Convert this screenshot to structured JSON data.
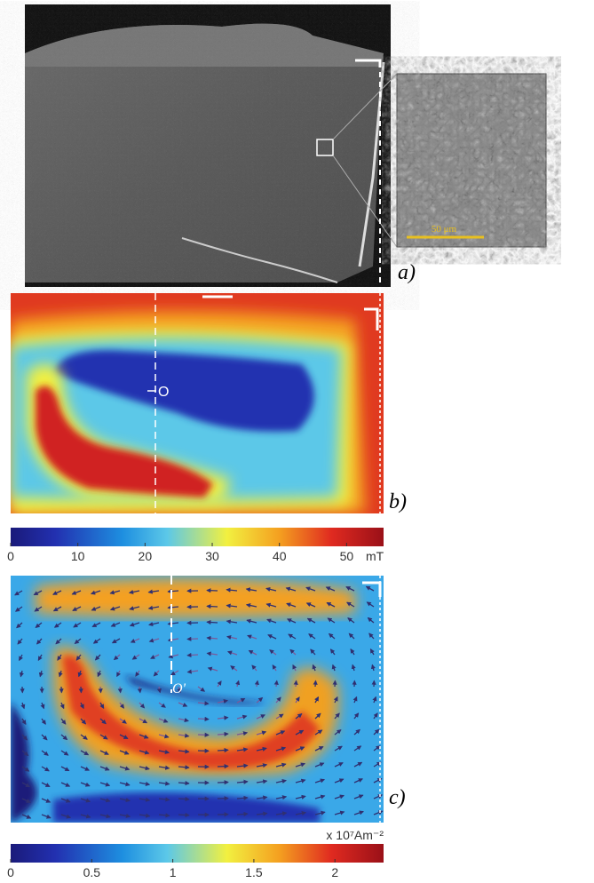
{
  "panels": {
    "a": {
      "label": "a)",
      "scale_bar": "50 μm"
    },
    "b": {
      "label": "b)",
      "point": "O",
      "colorbar": {
        "lim": [
          0,
          55.5
        ],
        "ticks": [
          0,
          10,
          20,
          30,
          40,
          50
        ],
        "unit": "mT"
      }
    },
    "c": {
      "label": "c)",
      "point": "O'",
      "colorbar": {
        "lim": [
          0,
          2.3
        ],
        "ticks": [
          0,
          0.5,
          1,
          1.5,
          2
        ],
        "unit": "x 10⁷Am⁻²"
      }
    }
  }
}
